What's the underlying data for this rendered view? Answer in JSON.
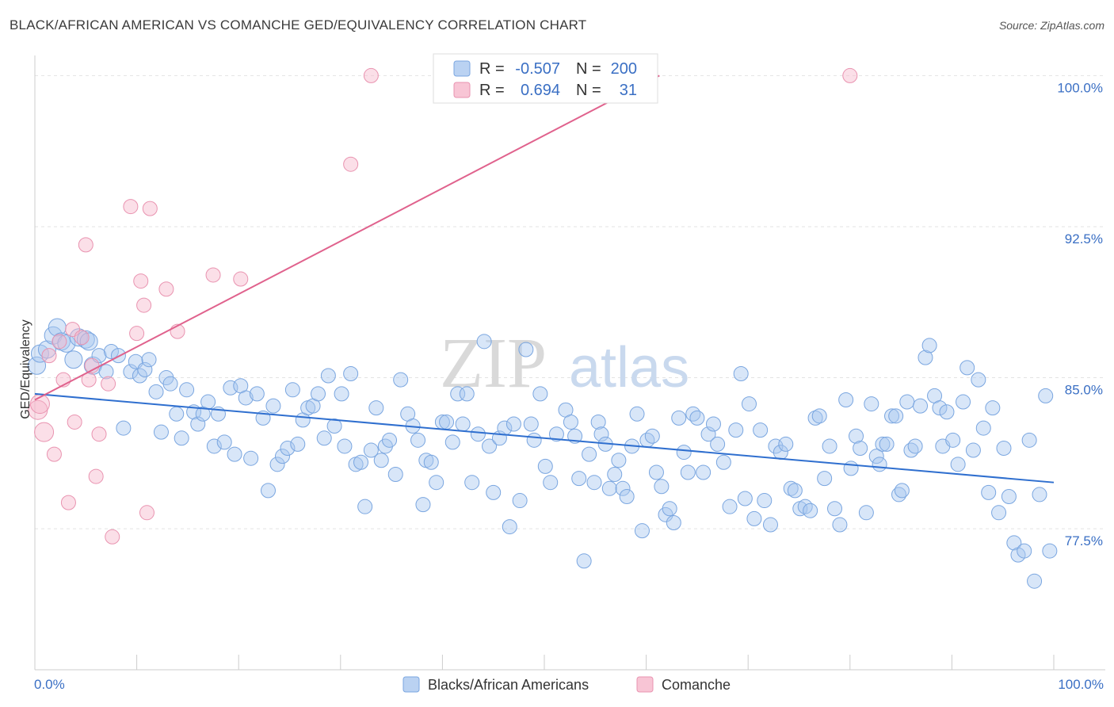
{
  "header": {
    "title": "BLACK/AFRICAN AMERICAN VS COMANCHE GED/EQUIVALENCY CORRELATION CHART",
    "source": "Source: ZipAtlas.com"
  },
  "watermark": {
    "zip": "ZIP",
    "atlas": "atlas"
  },
  "legend": {
    "rows": [
      {
        "r_label": "R =",
        "r_value": "-0.507",
        "n_label": "N =",
        "n_value": "200",
        "color": "#a9c7ef"
      },
      {
        "r_label": "R =",
        "r_value": "0.694",
        "n_label": "N =",
        "n_value": "31",
        "color": "#f6b7cb"
      }
    ]
  },
  "bottom_legend": [
    {
      "label": "Blacks/African Americans",
      "color": "#a9c7ef"
    },
    {
      "label": "Comanche",
      "color": "#f6b7cb"
    }
  ],
  "chart_data": {
    "type": "scatter",
    "ylabel": "GED/Equivalency",
    "xlabel": "",
    "xlim": [
      0,
      100
    ],
    "ylim": [
      70.5,
      101
    ],
    "x_tick_labels": [
      {
        "value": 0,
        "label": "0.0%"
      },
      {
        "value": 100,
        "label": "100.0%"
      }
    ],
    "y_ticks": [
      {
        "value": 100.0,
        "label": "100.0%"
      },
      {
        "value": 92.5,
        "label": "92.5%"
      },
      {
        "value": 85.0,
        "label": "85.0%"
      },
      {
        "value": 77.5,
        "label": "77.5%"
      }
    ],
    "grid": true,
    "legend_position": "top-center",
    "series": [
      {
        "color": "#a9c7ef",
        "stroke": "#7aa6e0",
        "trend": {
          "x": [
            0,
            100
          ],
          "y": [
            84.2,
            79.8
          ],
          "color": "#2f6fcf"
        },
        "points": [
          [
            0.2,
            85.6
          ],
          [
            0.5,
            86.2
          ],
          [
            1.2,
            86.4
          ],
          [
            1.8,
            87.1
          ],
          [
            2.2,
            87.5
          ],
          [
            2.6,
            86.8
          ],
          [
            3.1,
            86.7
          ],
          [
            3.8,
            85.9
          ],
          [
            4.3,
            87.0
          ],
          [
            5.0,
            86.9
          ],
          [
            5.3,
            86.8
          ],
          [
            5.7,
            85.6
          ],
          [
            6.3,
            86.1
          ],
          [
            7.0,
            85.3
          ],
          [
            7.5,
            86.3
          ],
          [
            8.2,
            86.1
          ],
          [
            8.7,
            82.5
          ],
          [
            9.4,
            85.3
          ],
          [
            9.9,
            85.8
          ],
          [
            10.3,
            85.1
          ],
          [
            10.8,
            85.4
          ],
          [
            11.2,
            85.9
          ],
          [
            11.9,
            84.3
          ],
          [
            12.4,
            82.3
          ],
          [
            12.9,
            85.0
          ],
          [
            13.3,
            84.7
          ],
          [
            13.9,
            83.2
          ],
          [
            14.4,
            82.0
          ],
          [
            14.9,
            84.4
          ],
          [
            15.6,
            83.3
          ],
          [
            16.0,
            82.7
          ],
          [
            16.5,
            83.2
          ],
          [
            17.0,
            83.8
          ],
          [
            17.6,
            81.6
          ],
          [
            18.0,
            83.2
          ],
          [
            18.6,
            81.8
          ],
          [
            19.2,
            84.5
          ],
          [
            19.6,
            81.2
          ],
          [
            20.2,
            84.6
          ],
          [
            20.7,
            84.0
          ],
          [
            21.2,
            81.0
          ],
          [
            21.8,
            84.2
          ],
          [
            22.4,
            83.0
          ],
          [
            22.9,
            79.4
          ],
          [
            23.4,
            83.6
          ],
          [
            23.8,
            80.7
          ],
          [
            24.3,
            81.1
          ],
          [
            24.8,
            81.5
          ],
          [
            25.3,
            84.4
          ],
          [
            25.8,
            81.7
          ],
          [
            26.3,
            82.9
          ],
          [
            26.8,
            83.5
          ],
          [
            27.3,
            83.6
          ],
          [
            27.8,
            84.2
          ],
          [
            28.4,
            82.0
          ],
          [
            28.8,
            85.1
          ],
          [
            29.4,
            82.6
          ],
          [
            30.1,
            84.2
          ],
          [
            30.4,
            81.6
          ],
          [
            31.0,
            85.2
          ],
          [
            31.5,
            80.7
          ],
          [
            32.0,
            80.8
          ],
          [
            32.4,
            78.6
          ],
          [
            33.0,
            81.4
          ],
          [
            33.5,
            83.5
          ],
          [
            34.0,
            80.9
          ],
          [
            34.4,
            81.6
          ],
          [
            34.8,
            81.9
          ],
          [
            35.4,
            80.2
          ],
          [
            35.9,
            84.9
          ],
          [
            36.6,
            83.2
          ],
          [
            37.1,
            82.6
          ],
          [
            37.6,
            81.9
          ],
          [
            38.1,
            78.7
          ],
          [
            38.4,
            80.9
          ],
          [
            38.9,
            80.8
          ],
          [
            39.4,
            79.8
          ],
          [
            40.0,
            82.8
          ],
          [
            40.4,
            82.8
          ],
          [
            41.0,
            81.8
          ],
          [
            41.5,
            84.2
          ],
          [
            42.0,
            82.7
          ],
          [
            42.4,
            84.2
          ],
          [
            42.9,
            79.8
          ],
          [
            43.5,
            82.2
          ],
          [
            44.1,
            86.8
          ],
          [
            44.6,
            81.6
          ],
          [
            45.0,
            79.3
          ],
          [
            45.6,
            82.0
          ],
          [
            46.1,
            82.5
          ],
          [
            46.6,
            77.6
          ],
          [
            47.0,
            82.7
          ],
          [
            47.6,
            78.9
          ],
          [
            48.2,
            86.4
          ],
          [
            48.7,
            82.7
          ],
          [
            49.0,
            81.9
          ],
          [
            49.6,
            84.2
          ],
          [
            50.1,
            80.6
          ],
          [
            50.6,
            79.8
          ],
          [
            51.2,
            82.2
          ],
          [
            52.1,
            83.4
          ],
          [
            52.6,
            82.8
          ],
          [
            53.0,
            82.1
          ],
          [
            53.4,
            80.0
          ],
          [
            53.9,
            75.9
          ],
          [
            54.4,
            81.2
          ],
          [
            54.9,
            79.8
          ],
          [
            55.3,
            82.8
          ],
          [
            55.6,
            82.2
          ],
          [
            56.0,
            81.7
          ],
          [
            56.4,
            79.5
          ],
          [
            56.9,
            80.2
          ],
          [
            57.3,
            80.9
          ],
          [
            57.7,
            79.5
          ],
          [
            58.1,
            79.1
          ],
          [
            58.6,
            81.6
          ],
          [
            59.1,
            83.2
          ],
          [
            59.6,
            77.4
          ],
          [
            60.1,
            81.9
          ],
          [
            60.6,
            82.1
          ],
          [
            61.0,
            80.3
          ],
          [
            61.5,
            79.6
          ],
          [
            61.9,
            78.2
          ],
          [
            62.3,
            78.5
          ],
          [
            62.7,
            77.8
          ],
          [
            63.2,
            83.0
          ],
          [
            63.7,
            81.3
          ],
          [
            64.1,
            80.3
          ],
          [
            64.6,
            83.2
          ],
          [
            65.0,
            83.0
          ],
          [
            65.6,
            80.3
          ],
          [
            66.1,
            82.2
          ],
          [
            66.6,
            82.7
          ],
          [
            67.0,
            81.7
          ],
          [
            67.6,
            80.8
          ],
          [
            68.2,
            78.6
          ],
          [
            68.8,
            82.4
          ],
          [
            69.3,
            85.2
          ],
          [
            69.7,
            79.0
          ],
          [
            70.1,
            83.7
          ],
          [
            70.6,
            78.0
          ],
          [
            71.2,
            82.4
          ],
          [
            71.6,
            78.9
          ],
          [
            72.2,
            77.7
          ],
          [
            72.7,
            81.6
          ],
          [
            73.2,
            81.3
          ],
          [
            73.7,
            81.7
          ],
          [
            74.2,
            79.5
          ],
          [
            74.6,
            79.4
          ],
          [
            75.1,
            78.5
          ],
          [
            75.6,
            78.6
          ],
          [
            76.1,
            78.4
          ],
          [
            76.6,
            83.0
          ],
          [
            77.0,
            83.1
          ],
          [
            77.5,
            80.0
          ],
          [
            78.0,
            81.6
          ],
          [
            78.5,
            78.5
          ],
          [
            79.0,
            77.7
          ],
          [
            79.6,
            83.9
          ],
          [
            80.1,
            80.5
          ],
          [
            80.6,
            82.1
          ],
          [
            81.0,
            81.5
          ],
          [
            81.6,
            78.3
          ],
          [
            82.1,
            83.7
          ],
          [
            82.6,
            81.1
          ],
          [
            82.9,
            80.7
          ],
          [
            83.2,
            81.7
          ],
          [
            83.6,
            81.7
          ],
          [
            84.1,
            83.1
          ],
          [
            84.5,
            83.1
          ],
          [
            84.8,
            79.2
          ],
          [
            85.1,
            79.4
          ],
          [
            85.6,
            83.8
          ],
          [
            86.0,
            81.4
          ],
          [
            86.4,
            81.6
          ],
          [
            86.9,
            83.6
          ],
          [
            87.4,
            86.0
          ],
          [
            87.8,
            86.6
          ],
          [
            88.3,
            84.1
          ],
          [
            88.8,
            83.5
          ],
          [
            89.1,
            81.6
          ],
          [
            89.5,
            83.3
          ],
          [
            90.1,
            81.9
          ],
          [
            90.6,
            80.7
          ],
          [
            91.1,
            83.8
          ],
          [
            91.5,
            85.5
          ],
          [
            92.1,
            81.4
          ],
          [
            92.6,
            84.9
          ],
          [
            93.1,
            82.5
          ],
          [
            93.6,
            79.3
          ],
          [
            94.0,
            83.5
          ],
          [
            94.6,
            78.3
          ],
          [
            95.1,
            81.5
          ],
          [
            95.6,
            79.1
          ],
          [
            96.1,
            76.8
          ],
          [
            96.5,
            76.2
          ],
          [
            97.1,
            76.4
          ],
          [
            97.6,
            81.9
          ],
          [
            98.1,
            74.9
          ],
          [
            98.6,
            79.2
          ],
          [
            99.2,
            84.1
          ],
          [
            99.6,
            76.4
          ]
        ]
      },
      {
        "color": "#f6b7cb",
        "stroke": "#e993b0",
        "trend": {
          "x": [
            0,
            61.3
          ],
          "y": [
            83.9,
            100.0
          ],
          "color": "#e0628d"
        },
        "points": [
          [
            0.3,
            83.4
          ],
          [
            0.5,
            83.7
          ],
          [
            0.9,
            82.3
          ],
          [
            1.4,
            86.1
          ],
          [
            1.9,
            81.2
          ],
          [
            2.4,
            86.8
          ],
          [
            2.8,
            84.9
          ],
          [
            3.3,
            78.8
          ],
          [
            3.7,
            87.4
          ],
          [
            3.9,
            82.8
          ],
          [
            4.6,
            87.0
          ],
          [
            5.0,
            91.6
          ],
          [
            5.3,
            84.9
          ],
          [
            5.6,
            85.6
          ],
          [
            6.0,
            80.1
          ],
          [
            6.3,
            82.2
          ],
          [
            7.2,
            84.7
          ],
          [
            7.6,
            77.1
          ],
          [
            9.4,
            93.5
          ],
          [
            10.0,
            87.2
          ],
          [
            10.4,
            89.8
          ],
          [
            10.7,
            88.6
          ],
          [
            11.0,
            78.3
          ],
          [
            11.3,
            93.4
          ],
          [
            12.9,
            89.4
          ],
          [
            14.0,
            87.3
          ],
          [
            17.5,
            90.1
          ],
          [
            20.2,
            89.9
          ],
          [
            31.0,
            95.6
          ],
          [
            33.0,
            100.0
          ],
          [
            80.0,
            100.0
          ]
        ]
      }
    ]
  }
}
